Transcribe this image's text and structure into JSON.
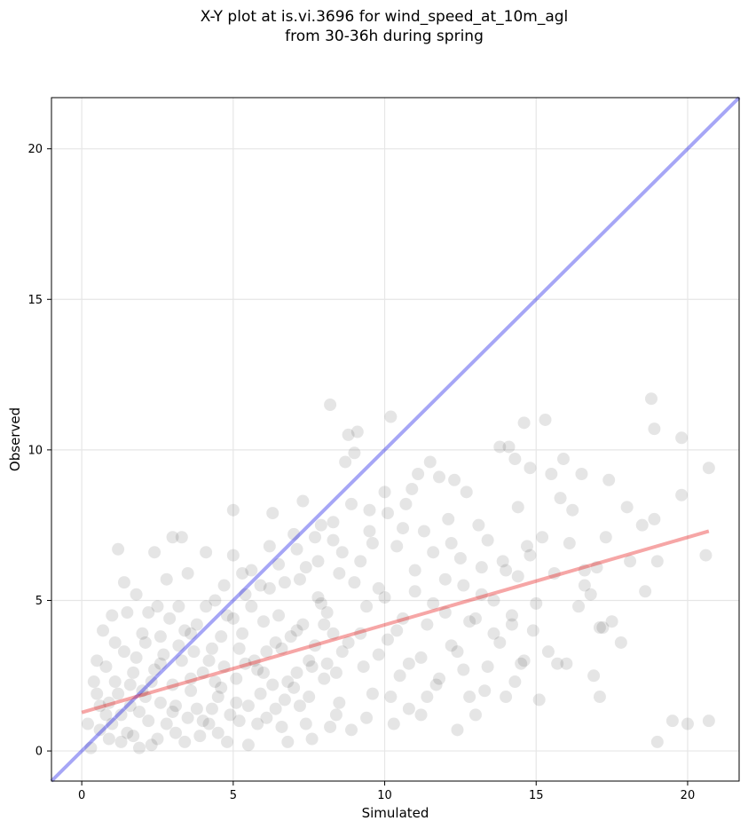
{
  "chart_data": {
    "type": "scatter",
    "title_lines": [
      "X-Y plot at is.vi.3696 for wind_speed_at_10m_agl",
      "from 30-36h during spring"
    ],
    "xlabel": "Simulated",
    "ylabel": "Observed",
    "xlim": [
      -1,
      21.7
    ],
    "ylim": [
      -1,
      21.7
    ],
    "xticks": [
      0,
      5,
      10,
      15,
      20
    ],
    "yticks": [
      0,
      5,
      10,
      15,
      20
    ],
    "grid": true,
    "point_color": "#000000",
    "identity_line": {
      "from": [
        -1,
        -1
      ],
      "to": [
        21.7,
        21.7
      ],
      "color": "#0000e6"
    },
    "fit_line": {
      "from": [
        0,
        1.28
      ],
      "to": [
        20.7,
        7.3
      ],
      "color": "#e60000"
    },
    "points": [
      [
        0.2,
        0.9
      ],
      [
        0.4,
        2.3
      ],
      [
        0.5,
        3.0
      ],
      [
        0.6,
        1.5
      ],
      [
        0.7,
        4.0
      ],
      [
        0.8,
        2.8
      ],
      [
        0.9,
        0.4
      ],
      [
        1.0,
        4.5
      ],
      [
        1.1,
        3.6
      ],
      [
        1.2,
        6.7
      ],
      [
        1.3,
        1.2
      ],
      [
        1.4,
        5.6
      ],
      [
        1.5,
        4.6
      ],
      [
        1.6,
        2.2
      ],
      [
        1.7,
        0.5
      ],
      [
        1.8,
        5.2
      ],
      [
        2.0,
        3.9
      ],
      [
        2.1,
        1.8
      ],
      [
        2.3,
        0.2
      ],
      [
        2.4,
        6.6
      ],
      [
        2.5,
        4.8
      ],
      [
        2.6,
        2.9
      ],
      [
        2.8,
        5.7
      ],
      [
        3.0,
        1.3
      ],
      [
        3.0,
        7.1
      ],
      [
        3.2,
        3.5
      ],
      [
        3.3,
        7.1
      ],
      [
        3.4,
        0.3
      ],
      [
        3.5,
        5.9
      ],
      [
        3.6,
        2.4
      ],
      [
        3.8,
        4.2
      ],
      [
        4.0,
        1.0
      ],
      [
        4.1,
        6.6
      ],
      [
        4.2,
        3.0
      ],
      [
        4.4,
        5.0
      ],
      [
        4.5,
        0.6
      ],
      [
        4.6,
        2.1
      ],
      [
        4.8,
        4.5
      ],
      [
        5.0,
        6.5
      ],
      [
        5.0,
        8.0
      ],
      [
        5.1,
        1.6
      ],
      [
        5.2,
        3.4
      ],
      [
        5.4,
        5.2
      ],
      [
        5.5,
        0.2
      ],
      [
        5.6,
        6.0
      ],
      [
        5.8,
        2.7
      ],
      [
        6.0,
        4.3
      ],
      [
        6.1,
        1.1
      ],
      [
        6.2,
        6.8
      ],
      [
        6.3,
        7.9
      ],
      [
        6.4,
        3.6
      ],
      [
        6.6,
        0.8
      ],
      [
        6.7,
        5.6
      ],
      [
        6.8,
        2.3
      ],
      [
        7.0,
        7.2
      ],
      [
        7.1,
        4.0
      ],
      [
        7.2,
        1.5
      ],
      [
        7.3,
        8.3
      ],
      [
        7.4,
        6.1
      ],
      [
        7.5,
        3.0
      ],
      [
        7.6,
        0.4
      ],
      [
        7.8,
        5.1
      ],
      [
        7.9,
        7.5
      ],
      [
        8.0,
        2.4
      ],
      [
        8.1,
        4.6
      ],
      [
        8.2,
        11.5
      ],
      [
        8.3,
        7.0
      ],
      [
        8.4,
        1.2
      ],
      [
        8.5,
        5.9
      ],
      [
        8.6,
        3.3
      ],
      [
        8.7,
        9.6
      ],
      [
        8.8,
        10.5
      ],
      [
        8.9,
        0.7
      ],
      [
        9.0,
        9.9
      ],
      [
        9.1,
        10.6
      ],
      [
        9.2,
        6.3
      ],
      [
        9.3,
        2.8
      ],
      [
        9.4,
        4.8
      ],
      [
        9.5,
        8.0
      ],
      [
        9.6,
        1.9
      ],
      [
        9.8,
        5.4
      ],
      [
        10.0,
        8.6
      ],
      [
        10.1,
        3.7
      ],
      [
        10.2,
        11.1
      ],
      [
        10.3,
        0.9
      ],
      [
        10.4,
        6.8
      ],
      [
        10.5,
        2.5
      ],
      [
        10.6,
        4.4
      ],
      [
        10.7,
        8.2
      ],
      [
        10.8,
        1.4
      ],
      [
        11.0,
        6.0
      ],
      [
        11.1,
        9.2
      ],
      [
        11.2,
        3.1
      ],
      [
        11.3,
        7.3
      ],
      [
        11.4,
        1.8
      ],
      [
        11.5,
        9.6
      ],
      [
        11.6,
        4.9
      ],
      [
        11.7,
        2.2
      ],
      [
        11.8,
        9.1
      ],
      [
        12.0,
        5.7
      ],
      [
        12.1,
        7.7
      ],
      [
        12.2,
        3.5
      ],
      [
        12.3,
        9.0
      ],
      [
        12.4,
        0.7
      ],
      [
        12.5,
        6.4
      ],
      [
        12.6,
        2.7
      ],
      [
        12.7,
        8.6
      ],
      [
        12.8,
        4.3
      ],
      [
        13.0,
        1.2
      ],
      [
        13.1,
        7.5
      ],
      [
        13.2,
        5.2
      ],
      [
        13.3,
        2.0
      ],
      [
        13.4,
        7.0
      ],
      [
        13.6,
        3.9
      ],
      [
        13.8,
        10.1
      ],
      [
        13.9,
        6.3
      ],
      [
        14.0,
        1.8
      ],
      [
        14.1,
        10.1
      ],
      [
        14.2,
        4.5
      ],
      [
        14.3,
        9.7
      ],
      [
        14.4,
        8.1
      ],
      [
        14.5,
        2.9
      ],
      [
        14.6,
        10.9
      ],
      [
        14.7,
        6.8
      ],
      [
        14.8,
        9.4
      ],
      [
        15.0,
        4.9
      ],
      [
        15.1,
        1.7
      ],
      [
        15.2,
        7.1
      ],
      [
        15.3,
        11.0
      ],
      [
        15.4,
        3.3
      ],
      [
        15.5,
        9.2
      ],
      [
        15.6,
        5.9
      ],
      [
        15.8,
        8.4
      ],
      [
        15.9,
        9.7
      ],
      [
        16.0,
        2.9
      ],
      [
        16.1,
        6.9
      ],
      [
        16.2,
        8.0
      ],
      [
        16.4,
        4.8
      ],
      [
        16.5,
        9.2
      ],
      [
        16.6,
        6.0
      ],
      [
        16.8,
        5.2
      ],
      [
        16.9,
        2.5
      ],
      [
        17.0,
        6.1
      ],
      [
        17.1,
        1.8
      ],
      [
        17.2,
        4.1
      ],
      [
        17.3,
        7.1
      ],
      [
        17.4,
        9.0
      ],
      [
        17.5,
        4.3
      ],
      [
        17.8,
        3.6
      ],
      [
        18.0,
        8.1
      ],
      [
        18.1,
        6.3
      ],
      [
        18.5,
        7.5
      ],
      [
        18.6,
        5.3
      ],
      [
        18.8,
        11.7
      ],
      [
        18.9,
        7.7
      ],
      [
        19.0,
        6.3
      ],
      [
        19.0,
        0.3
      ],
      [
        19.5,
        1.0
      ],
      [
        19.8,
        10.4
      ],
      [
        19.8,
        8.5
      ],
      [
        20.0,
        0.9
      ],
      [
        20.6,
        6.5
      ],
      [
        20.7,
        9.4
      ],
      [
        20.7,
        1.0
      ],
      [
        18.9,
        10.7
      ],
      [
        17.1,
        4.1
      ],
      [
        16.6,
        5.5
      ],
      [
        15.7,
        2.9
      ],
      [
        14.9,
        4.0
      ],
      [
        14.3,
        2.3
      ],
      [
        1.0,
        0.9
      ],
      [
        1.2,
        1.9
      ],
      [
        1.5,
        0.6
      ],
      [
        1.7,
        2.6
      ],
      [
        1.9,
        1.3
      ],
      [
        2.0,
        2.0
      ],
      [
        2.2,
        1.0
      ],
      [
        2.4,
        2.7
      ],
      [
        2.6,
        1.6
      ],
      [
        2.8,
        0.9
      ],
      [
        3.0,
        2.2
      ],
      [
        3.1,
        1.5
      ],
      [
        3.3,
        3.0
      ],
      [
        3.5,
        1.1
      ],
      [
        3.6,
        2.0
      ],
      [
        3.8,
        1.4
      ],
      [
        4.0,
        2.6
      ],
      [
        4.2,
        0.9
      ],
      [
        4.3,
        3.4
      ],
      [
        4.5,
        1.8
      ],
      [
        4.7,
        2.8
      ],
      [
        4.9,
        1.2
      ],
      [
        5.1,
        2.4
      ],
      [
        5.3,
        3.9
      ],
      [
        5.5,
        1.5
      ],
      [
        5.7,
        3.0
      ],
      [
        5.9,
        1.9
      ],
      [
        6.1,
        3.3
      ],
      [
        6.3,
        2.2
      ],
      [
        6.5,
        4.5
      ],
      [
        6.7,
        1.7
      ],
      [
        6.9,
        3.8
      ],
      [
        7.1,
        2.6
      ],
      [
        7.3,
        4.2
      ],
      [
        7.5,
        1.8
      ],
      [
        7.7,
        3.5
      ],
      [
        7.9,
        4.9
      ],
      [
        8.1,
        2.9
      ],
      [
        8.3,
        3.9
      ],
      [
        8.5,
        1.6
      ],
      [
        0.3,
        0.1
      ],
      [
        0.6,
        0.7
      ],
      [
        0.9,
        1.6
      ],
      [
        1.1,
        2.3
      ],
      [
        1.4,
        3.3
      ],
      [
        1.6,
        1.5
      ],
      [
        1.8,
        3.1
      ],
      [
        2.1,
        3.6
      ],
      [
        2.3,
        2.3
      ],
      [
        2.5,
        0.4
      ],
      [
        2.7,
        3.2
      ],
      [
        2.9,
        4.4
      ],
      [
        3.1,
        0.6
      ],
      [
        3.4,
        4.0
      ],
      [
        3.7,
        3.3
      ],
      [
        3.9,
        0.5
      ],
      [
        4.1,
        4.8
      ],
      [
        4.4,
        2.3
      ],
      [
        4.6,
        3.8
      ],
      [
        4.8,
        0.3
      ],
      [
        5.0,
        4.4
      ],
      [
        5.2,
        1.0
      ],
      [
        5.4,
        2.9
      ],
      [
        5.6,
        4.8
      ],
      [
        5.8,
        0.9
      ],
      [
        6.0,
        2.6
      ],
      [
        6.2,
        5.4
      ],
      [
        6.4,
        1.4
      ],
      [
        6.6,
        3.4
      ],
      [
        6.8,
        0.3
      ],
      [
        7.0,
        2.1
      ],
      [
        7.2,
        5.7
      ],
      [
        7.4,
        0.9
      ],
      [
        7.6,
        2.8
      ],
      [
        7.8,
        6.3
      ],
      [
        8.0,
        4.2
      ],
      [
        8.2,
        0.8
      ],
      [
        8.4,
        2.6
      ],
      [
        8.6,
        6.6
      ],
      [
        8.8,
        3.6
      ],
      [
        9.0,
        5.6
      ],
      [
        9.2,
        3.9
      ],
      [
        9.4,
        1.1
      ],
      [
        9.6,
        6.9
      ],
      [
        9.8,
        3.2
      ],
      [
        10.0,
        5.1
      ],
      [
        10.2,
        1.8
      ],
      [
        10.4,
        4.0
      ],
      [
        10.6,
        7.4
      ],
      [
        10.8,
        2.9
      ],
      [
        11.0,
        5.3
      ],
      [
        11.2,
        1.2
      ],
      [
        11.4,
        4.2
      ],
      [
        11.6,
        6.6
      ],
      [
        11.8,
        2.4
      ],
      [
        12.0,
        4.6
      ],
      [
        12.2,
        6.9
      ],
      [
        12.4,
        3.3
      ],
      [
        12.6,
        5.5
      ],
      [
        12.8,
        1.8
      ],
      [
        13.0,
        4.4
      ],
      [
        13.2,
        6.1
      ],
      [
        13.4,
        2.8
      ],
      [
        13.6,
        5.0
      ],
      [
        13.8,
        3.6
      ],
      [
        14.0,
        6.0
      ],
      [
        14.2,
        4.2
      ],
      [
        14.4,
        5.8
      ],
      [
        14.6,
        3.0
      ],
      [
        14.8,
        6.5
      ],
      [
        0.5,
        1.9
      ],
      [
        0.8,
        1.2
      ],
      [
        1.3,
        0.3
      ],
      [
        1.9,
        0.1
      ],
      [
        2.2,
        4.6
      ],
      [
        2.6,
        3.8
      ],
      [
        3.2,
        4.8
      ],
      [
        3.6,
        3.9
      ],
      [
        4.3,
        1.4
      ],
      [
        4.7,
        5.5
      ],
      [
        5.3,
        5.9
      ],
      [
        5.9,
        5.5
      ],
      [
        6.5,
        6.2
      ],
      [
        7.1,
        6.7
      ],
      [
        7.7,
        7.1
      ],
      [
        8.3,
        7.6
      ],
      [
        8.9,
        8.2
      ],
      [
        9.5,
        7.3
      ],
      [
        10.1,
        7.9
      ],
      [
        10.9,
        8.7
      ]
    ]
  }
}
